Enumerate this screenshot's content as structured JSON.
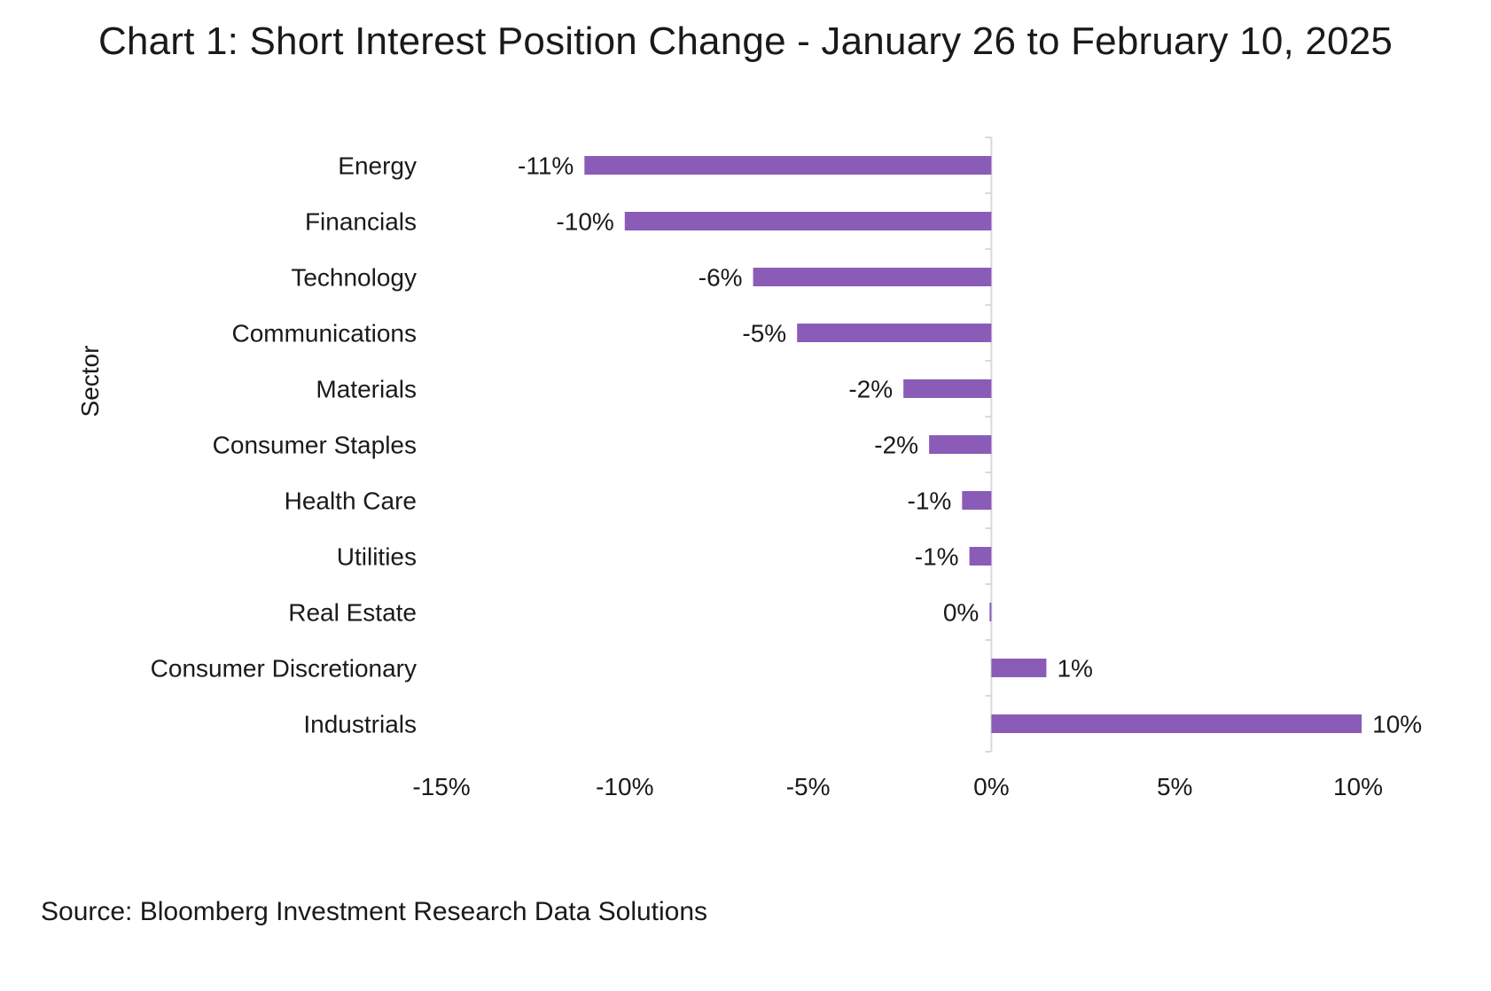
{
  "chart_data": {
    "type": "bar",
    "orientation": "horizontal",
    "title": "Chart 1: Short Interest Position Change - January 26 to February 10, 2025",
    "xlabel": "",
    "ylabel": "Sector",
    "categories": [
      "Energy",
      "Financials",
      "Technology",
      "Communications",
      "Materials",
      "Consumer Staples",
      "Health Care",
      "Utilities",
      "Real Estate",
      "Consumer Discretionary",
      "Industrials"
    ],
    "values": [
      -11.1,
      -10.0,
      -6.5,
      -5.3,
      -2.4,
      -1.7,
      -0.8,
      -0.6,
      -0.05,
      1.5,
      10.1
    ],
    "data_labels": [
      "-11%",
      "-10%",
      "-6%",
      "-5%",
      "-2%",
      "-2%",
      "-1%",
      "-1%",
      "0%",
      "1%",
      "10%"
    ],
    "xlim": [
      -15,
      10
    ],
    "xticks": [
      -15,
      -10,
      -5,
      0,
      5,
      10
    ],
    "xtick_labels": [
      "-15%",
      "-10%",
      "-5%",
      "0%",
      "5%",
      "10%"
    ],
    "grid": false,
    "legend": "none",
    "bar_color": "#8a5cb8",
    "axis_color": "#d9d9d9"
  },
  "source": "Source: Bloomberg Investment Research Data Solutions"
}
